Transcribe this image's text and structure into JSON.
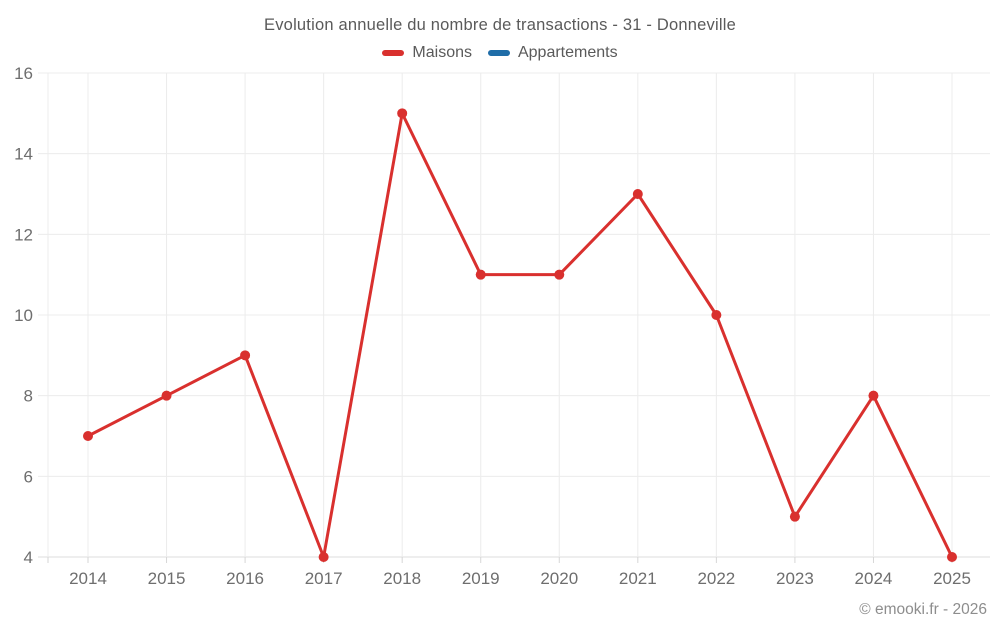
{
  "chart_data": {
    "type": "line",
    "title": "Evolution annuelle du nombre de transactions - 31 - Donneville",
    "categories": [
      "2014",
      "2015",
      "2016",
      "2017",
      "2018",
      "2019",
      "2020",
      "2021",
      "2022",
      "2023",
      "2024",
      "2025"
    ],
    "series": [
      {
        "name": "Maisons",
        "color": "#d9302e",
        "values": [
          7,
          8,
          9,
          4,
          15,
          11,
          11,
          13,
          10,
          5,
          8,
          4
        ]
      },
      {
        "name": "Appartements",
        "color": "#1f6da8",
        "values": []
      }
    ],
    "xlabel": "",
    "ylabel": "",
    "ylim": [
      4,
      16
    ],
    "ytick_step": 2,
    "yticks": [
      4,
      6,
      8,
      10,
      12,
      14,
      16
    ],
    "grid": true,
    "legend_position": "top"
  },
  "footer": {
    "copyright": "© emooki.fr - 2026"
  }
}
